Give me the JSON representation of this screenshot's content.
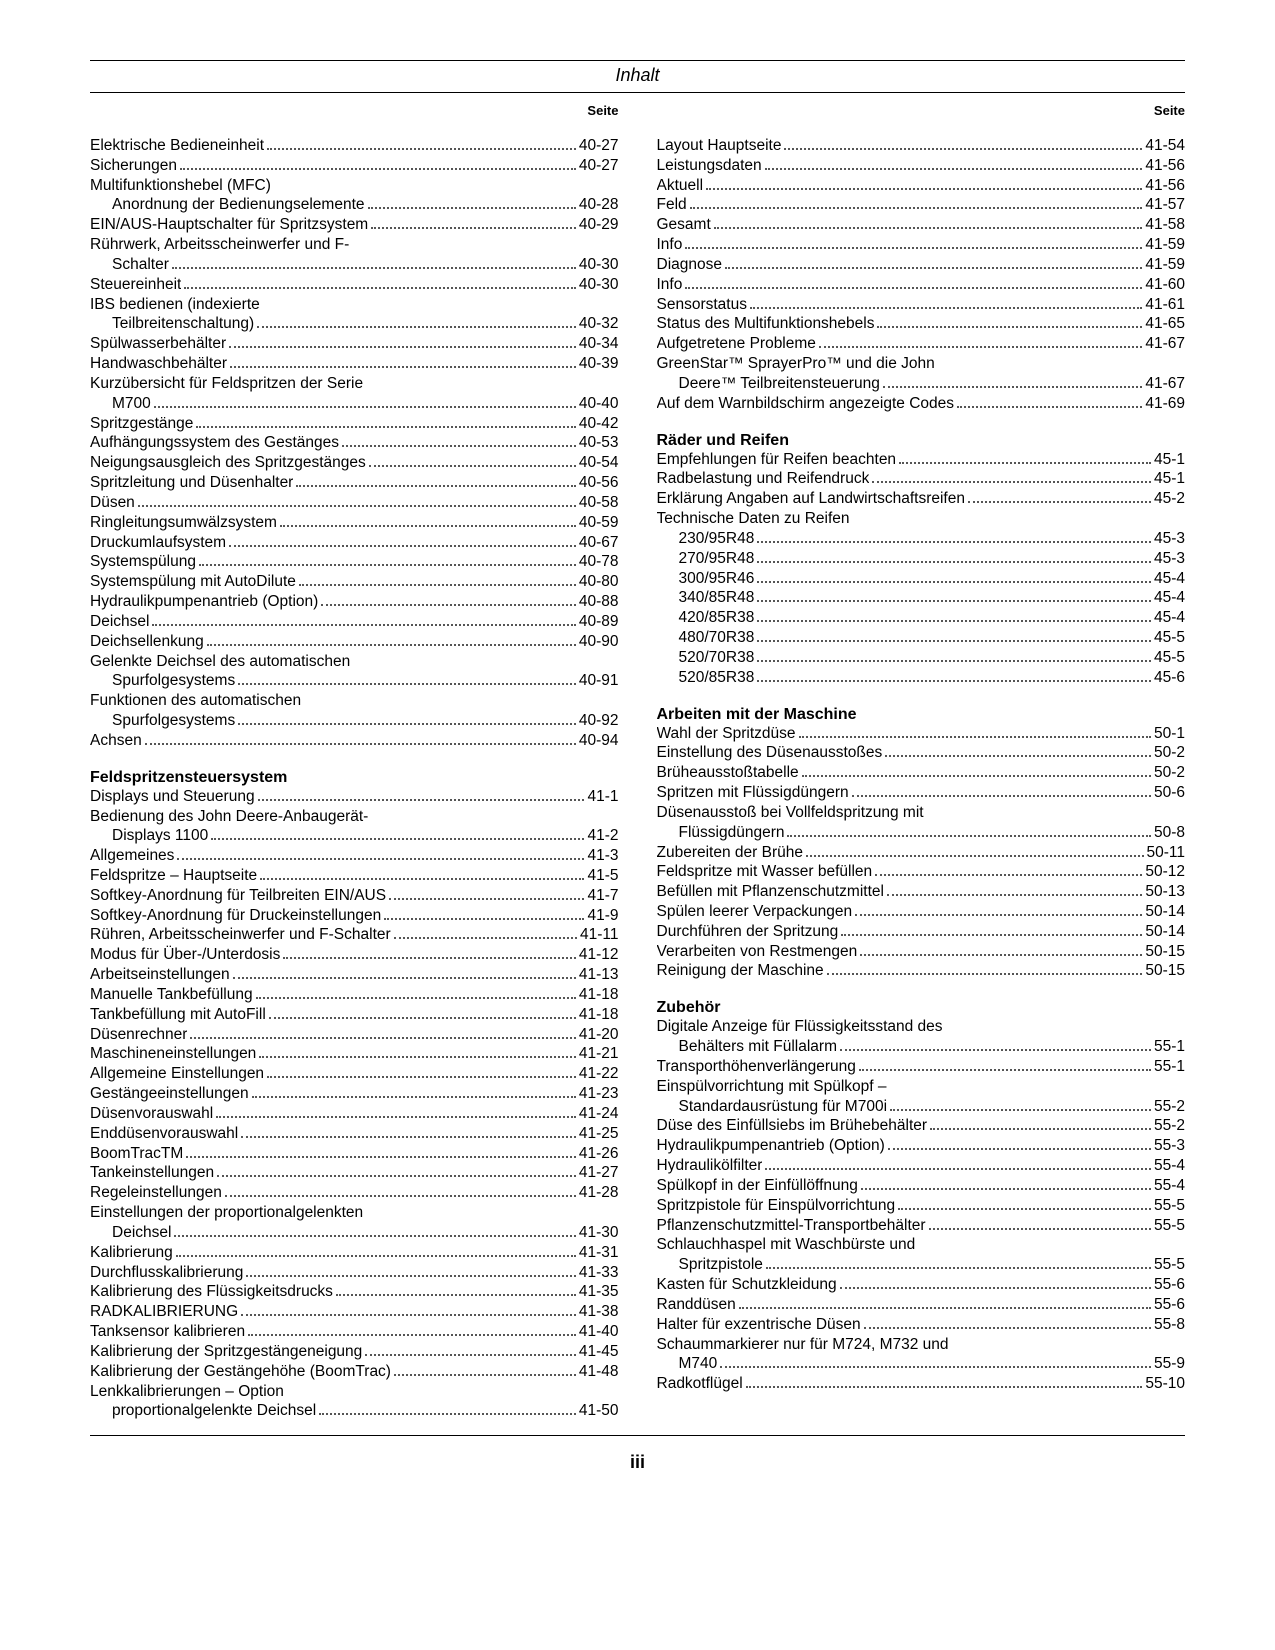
{
  "header_title": "Inhalt",
  "col_header": "Seite",
  "page_number": "iii",
  "left": [
    {
      "t": "e",
      "label": "Elektrische Bedieneinheit",
      "page": "40-27"
    },
    {
      "t": "e",
      "label": "Sicherungen",
      "page": "40-27"
    },
    {
      "t": "n",
      "label": "Multifunktionshebel (MFC)"
    },
    {
      "t": "s",
      "label": "Anordnung der Bedienungselemente",
      "page": "40-28"
    },
    {
      "t": "e",
      "label": "EIN/AUS-Hauptschalter für Spritzsystem",
      "page": "40-29"
    },
    {
      "t": "n",
      "label": "Rührwerk, Arbeitsscheinwerfer und F-"
    },
    {
      "t": "s",
      "label": "Schalter",
      "page": "40-30"
    },
    {
      "t": "e",
      "label": "Steuereinheit",
      "page": "40-30"
    },
    {
      "t": "n",
      "label": "IBS bedienen (indexierte"
    },
    {
      "t": "s",
      "label": "Teilbreitenschaltung)",
      "page": "40-32"
    },
    {
      "t": "e",
      "label": "Spülwasserbehälter",
      "page": "40-34"
    },
    {
      "t": "e",
      "label": "Handwaschbehälter",
      "page": "40-39"
    },
    {
      "t": "n",
      "label": "Kurzübersicht für Feldspritzen der Serie"
    },
    {
      "t": "s",
      "label": "M700",
      "page": "40-40"
    },
    {
      "t": "e",
      "label": "Spritzgestänge",
      "page": "40-42"
    },
    {
      "t": "e",
      "label": "Aufhängungssystem des Gestänges",
      "page": "40-53"
    },
    {
      "t": "e",
      "label": "Neigungsausgleich des Spritzgestänges",
      "page": "40-54"
    },
    {
      "t": "e",
      "label": "Spritzleitung und Düsenhalter",
      "page": "40-56"
    },
    {
      "t": "e",
      "label": "Düsen",
      "page": "40-58"
    },
    {
      "t": "e",
      "label": "Ringleitungsumwälzsystem",
      "page": "40-59"
    },
    {
      "t": "e",
      "label": "Druckumlaufsystem",
      "page": "40-67"
    },
    {
      "t": "e",
      "label": "Systemspülung",
      "page": "40-78"
    },
    {
      "t": "e",
      "label": "Systemspülung mit AutoDilute",
      "page": "40-80"
    },
    {
      "t": "e",
      "label": "Hydraulikpumpenantrieb (Option)",
      "page": "40-88"
    },
    {
      "t": "e",
      "label": "Deichsel",
      "page": "40-89"
    },
    {
      "t": "e",
      "label": "Deichsellenkung",
      "page": "40-90"
    },
    {
      "t": "n",
      "label": "Gelenkte Deichsel des automatischen"
    },
    {
      "t": "s",
      "label": "Spurfolgesystems",
      "page": "40-91"
    },
    {
      "t": "n",
      "label": "Funktionen des automatischen"
    },
    {
      "t": "s",
      "label": "Spurfolgesystems",
      "page": "40-92"
    },
    {
      "t": "e",
      "label": "Achsen",
      "page": "40-94"
    },
    {
      "t": "h",
      "label": "Feldspritzensteuersystem"
    },
    {
      "t": "e",
      "label": "Displays und Steuerung",
      "page": "41-1"
    },
    {
      "t": "n",
      "label": "Bedienung des John Deere-Anbaugerät-"
    },
    {
      "t": "s",
      "label": "Displays 1100",
      "page": "41-2"
    },
    {
      "t": "e",
      "label": "Allgemeines",
      "page": "41-3"
    },
    {
      "t": "e",
      "label": "Feldspritze – Hauptseite",
      "page": "41-5"
    },
    {
      "t": "e",
      "label": "Softkey-Anordnung für Teilbreiten EIN/AUS",
      "page": "41-7"
    },
    {
      "t": "e",
      "label": "Softkey-Anordnung für Druckeinstellungen",
      "page": "41-9"
    },
    {
      "t": "e",
      "label": "Rühren, Arbeitsscheinwerfer und F-Schalter",
      "page": "41-11"
    },
    {
      "t": "e",
      "label": "Modus für Über-/Unterdosis",
      "page": "41-12"
    },
    {
      "t": "e",
      "label": "Arbeitseinstellungen",
      "page": "41-13"
    },
    {
      "t": "e",
      "label": "Manuelle Tankbefüllung",
      "page": "41-18"
    },
    {
      "t": "e",
      "label": "Tankbefüllung mit AutoFill",
      "page": "41-18"
    },
    {
      "t": "e",
      "label": "Düsenrechner",
      "page": "41-20"
    },
    {
      "t": "e",
      "label": "Maschineneinstellungen",
      "page": "41-21"
    },
    {
      "t": "e",
      "label": "Allgemeine Einstellungen",
      "page": "41-22"
    },
    {
      "t": "e",
      "label": "Gestängeeinstellungen",
      "page": "41-23"
    },
    {
      "t": "e",
      "label": "Düsenvorauswahl",
      "page": "41-24"
    },
    {
      "t": "e",
      "label": "Enddüsenvorauswahl",
      "page": "41-25"
    },
    {
      "t": "e",
      "label": "BoomTracTM",
      "page": "41-26"
    },
    {
      "t": "e",
      "label": "Tankeinstellungen",
      "page": "41-27"
    },
    {
      "t": "e",
      "label": "Regeleinstellungen",
      "page": "41-28"
    },
    {
      "t": "n",
      "label": "Einstellungen der proportionalgelenkten"
    },
    {
      "t": "s",
      "label": "Deichsel",
      "page": "41-30"
    },
    {
      "t": "e",
      "label": "Kalibrierung",
      "page": "41-31"
    },
    {
      "t": "e",
      "label": "Durchflusskalibrierung",
      "page": "41-33"
    },
    {
      "t": "e",
      "label": "Kalibrierung des Flüssigkeitsdrucks",
      "page": "41-35"
    },
    {
      "t": "e",
      "label": "RADKALIBRIERUNG",
      "page": "41-38"
    },
    {
      "t": "e",
      "label": "Tanksensor kalibrieren",
      "page": "41-40"
    },
    {
      "t": "e",
      "label": "Kalibrierung der Spritzgestängeneigung",
      "page": "41-45"
    },
    {
      "t": "e",
      "label": "Kalibrierung der Gestängehöhe (BoomTrac)",
      "page": "41-48"
    },
    {
      "t": "n",
      "label": "Lenkkalibrierungen – Option"
    },
    {
      "t": "s",
      "label": "proportionalgelenkte Deichsel",
      "page": "41-50"
    }
  ],
  "right": [
    {
      "t": "e",
      "label": "Layout Hauptseite",
      "page": "41-54"
    },
    {
      "t": "e",
      "label": "Leistungsdaten",
      "page": "41-56"
    },
    {
      "t": "e",
      "label": "Aktuell",
      "page": "41-56"
    },
    {
      "t": "e",
      "label": "Feld",
      "page": "41-57"
    },
    {
      "t": "e",
      "label": "Gesamt",
      "page": "41-58"
    },
    {
      "t": "e",
      "label": "Info",
      "page": "41-59"
    },
    {
      "t": "e",
      "label": "Diagnose",
      "page": "41-59"
    },
    {
      "t": "e",
      "label": "Info",
      "page": "41-60"
    },
    {
      "t": "e",
      "label": "Sensorstatus",
      "page": "41-61"
    },
    {
      "t": "e",
      "label": "Status des Multifunktionshebels",
      "page": "41-65"
    },
    {
      "t": "e",
      "label": "Aufgetretene Probleme",
      "page": "41-67"
    },
    {
      "t": "n",
      "label": "GreenStar™ SprayerPro™ und die John"
    },
    {
      "t": "s",
      "label": "Deere™ Teilbreitensteuerung",
      "page": "41-67"
    },
    {
      "t": "e",
      "label": "Auf dem Warnbildschirm angezeigte Codes",
      "page": "41-69"
    },
    {
      "t": "h",
      "label": "Räder und Reifen"
    },
    {
      "t": "e",
      "label": "Empfehlungen für Reifen beachten",
      "page": "45-1"
    },
    {
      "t": "e",
      "label": "Radbelastung und Reifendruck",
      "page": "45-1"
    },
    {
      "t": "e",
      "label": "Erklärung Angaben auf Landwirtschaftsreifen",
      "page": "45-2"
    },
    {
      "t": "n",
      "label": "Technische Daten zu Reifen"
    },
    {
      "t": "s",
      "label": "230/95R48",
      "page": "45-3"
    },
    {
      "t": "s",
      "label": "270/95R48",
      "page": "45-3"
    },
    {
      "t": "s",
      "label": "300/95R46",
      "page": "45-4"
    },
    {
      "t": "s",
      "label": "340/85R48",
      "page": "45-4"
    },
    {
      "t": "s",
      "label": "420/85R38",
      "page": "45-4"
    },
    {
      "t": "s",
      "label": "480/70R38",
      "page": "45-5"
    },
    {
      "t": "s",
      "label": "520/70R38",
      "page": "45-5"
    },
    {
      "t": "s",
      "label": "520/85R38",
      "page": "45-6"
    },
    {
      "t": "h",
      "label": "Arbeiten mit der Maschine"
    },
    {
      "t": "e",
      "label": "Wahl der Spritzdüse",
      "page": "50-1"
    },
    {
      "t": "e",
      "label": "Einstellung des Düsenausstoßes",
      "page": "50-2"
    },
    {
      "t": "e",
      "label": "Brüheausstoßtabelle",
      "page": "50-2"
    },
    {
      "t": "e",
      "label": "Spritzen mit Flüssigdüngern",
      "page": "50-6"
    },
    {
      "t": "n",
      "label": "Düsenausstoß bei Vollfeldspritzung mit"
    },
    {
      "t": "s",
      "label": "Flüssigdüngern",
      "page": "50-8"
    },
    {
      "t": "e",
      "label": "Zubereiten der Brühe",
      "page": "50-11"
    },
    {
      "t": "e",
      "label": "Feldspritze mit Wasser befüllen",
      "page": "50-12"
    },
    {
      "t": "e",
      "label": "Befüllen mit Pflanzenschutzmittel",
      "page": "50-13"
    },
    {
      "t": "e",
      "label": "Spülen leerer Verpackungen",
      "page": "50-14"
    },
    {
      "t": "e",
      "label": "Durchführen der Spritzung",
      "page": "50-14"
    },
    {
      "t": "e",
      "label": "Verarbeiten von Restmengen",
      "page": "50-15"
    },
    {
      "t": "e",
      "label": "Reinigung der Maschine",
      "page": "50-15"
    },
    {
      "t": "h",
      "label": "Zubehör"
    },
    {
      "t": "n",
      "label": "Digitale Anzeige für Flüssigkeitsstand des"
    },
    {
      "t": "s",
      "label": "Behälters mit Füllalarm",
      "page": "55-1"
    },
    {
      "t": "e",
      "label": "Transporthöhenverlängerung",
      "page": "55-1"
    },
    {
      "t": "n",
      "label": "Einspülvorrichtung mit Spülkopf –"
    },
    {
      "t": "s",
      "label": "Standardausrüstung für M700i",
      "page": "55-2"
    },
    {
      "t": "e",
      "label": "Düse des Einfüllsiebs im Brühebehälter",
      "page": "55-2"
    },
    {
      "t": "e",
      "label": "Hydraulikpumpenantrieb (Option)",
      "page": "55-3"
    },
    {
      "t": "e",
      "label": "Hydraulikölfilter",
      "page": "55-4"
    },
    {
      "t": "e",
      "label": "Spülkopf in der Einfüllöffnung",
      "page": "55-4"
    },
    {
      "t": "e",
      "label": "Spritzpistole für Einspülvorrichtung",
      "page": "55-5"
    },
    {
      "t": "e",
      "label": "Pflanzenschutzmittel-Transportbehälter",
      "page": "55-5"
    },
    {
      "t": "n",
      "label": "Schlauchhaspel mit Waschbürste und"
    },
    {
      "t": "s",
      "label": "Spritzpistole",
      "page": "55-5"
    },
    {
      "t": "e",
      "label": "Kasten für Schutzkleidung",
      "page": "55-6"
    },
    {
      "t": "e",
      "label": "Randdüsen",
      "page": "55-6"
    },
    {
      "t": "e",
      "label": "Halter für exzentrische Düsen",
      "page": "55-8"
    },
    {
      "t": "n",
      "label": "Schaummarkierer nur für M724, M732 und"
    },
    {
      "t": "s",
      "label": "M740",
      "page": "55-9"
    },
    {
      "t": "e",
      "label": "Radkotflügel",
      "page": "55-10"
    }
  ]
}
